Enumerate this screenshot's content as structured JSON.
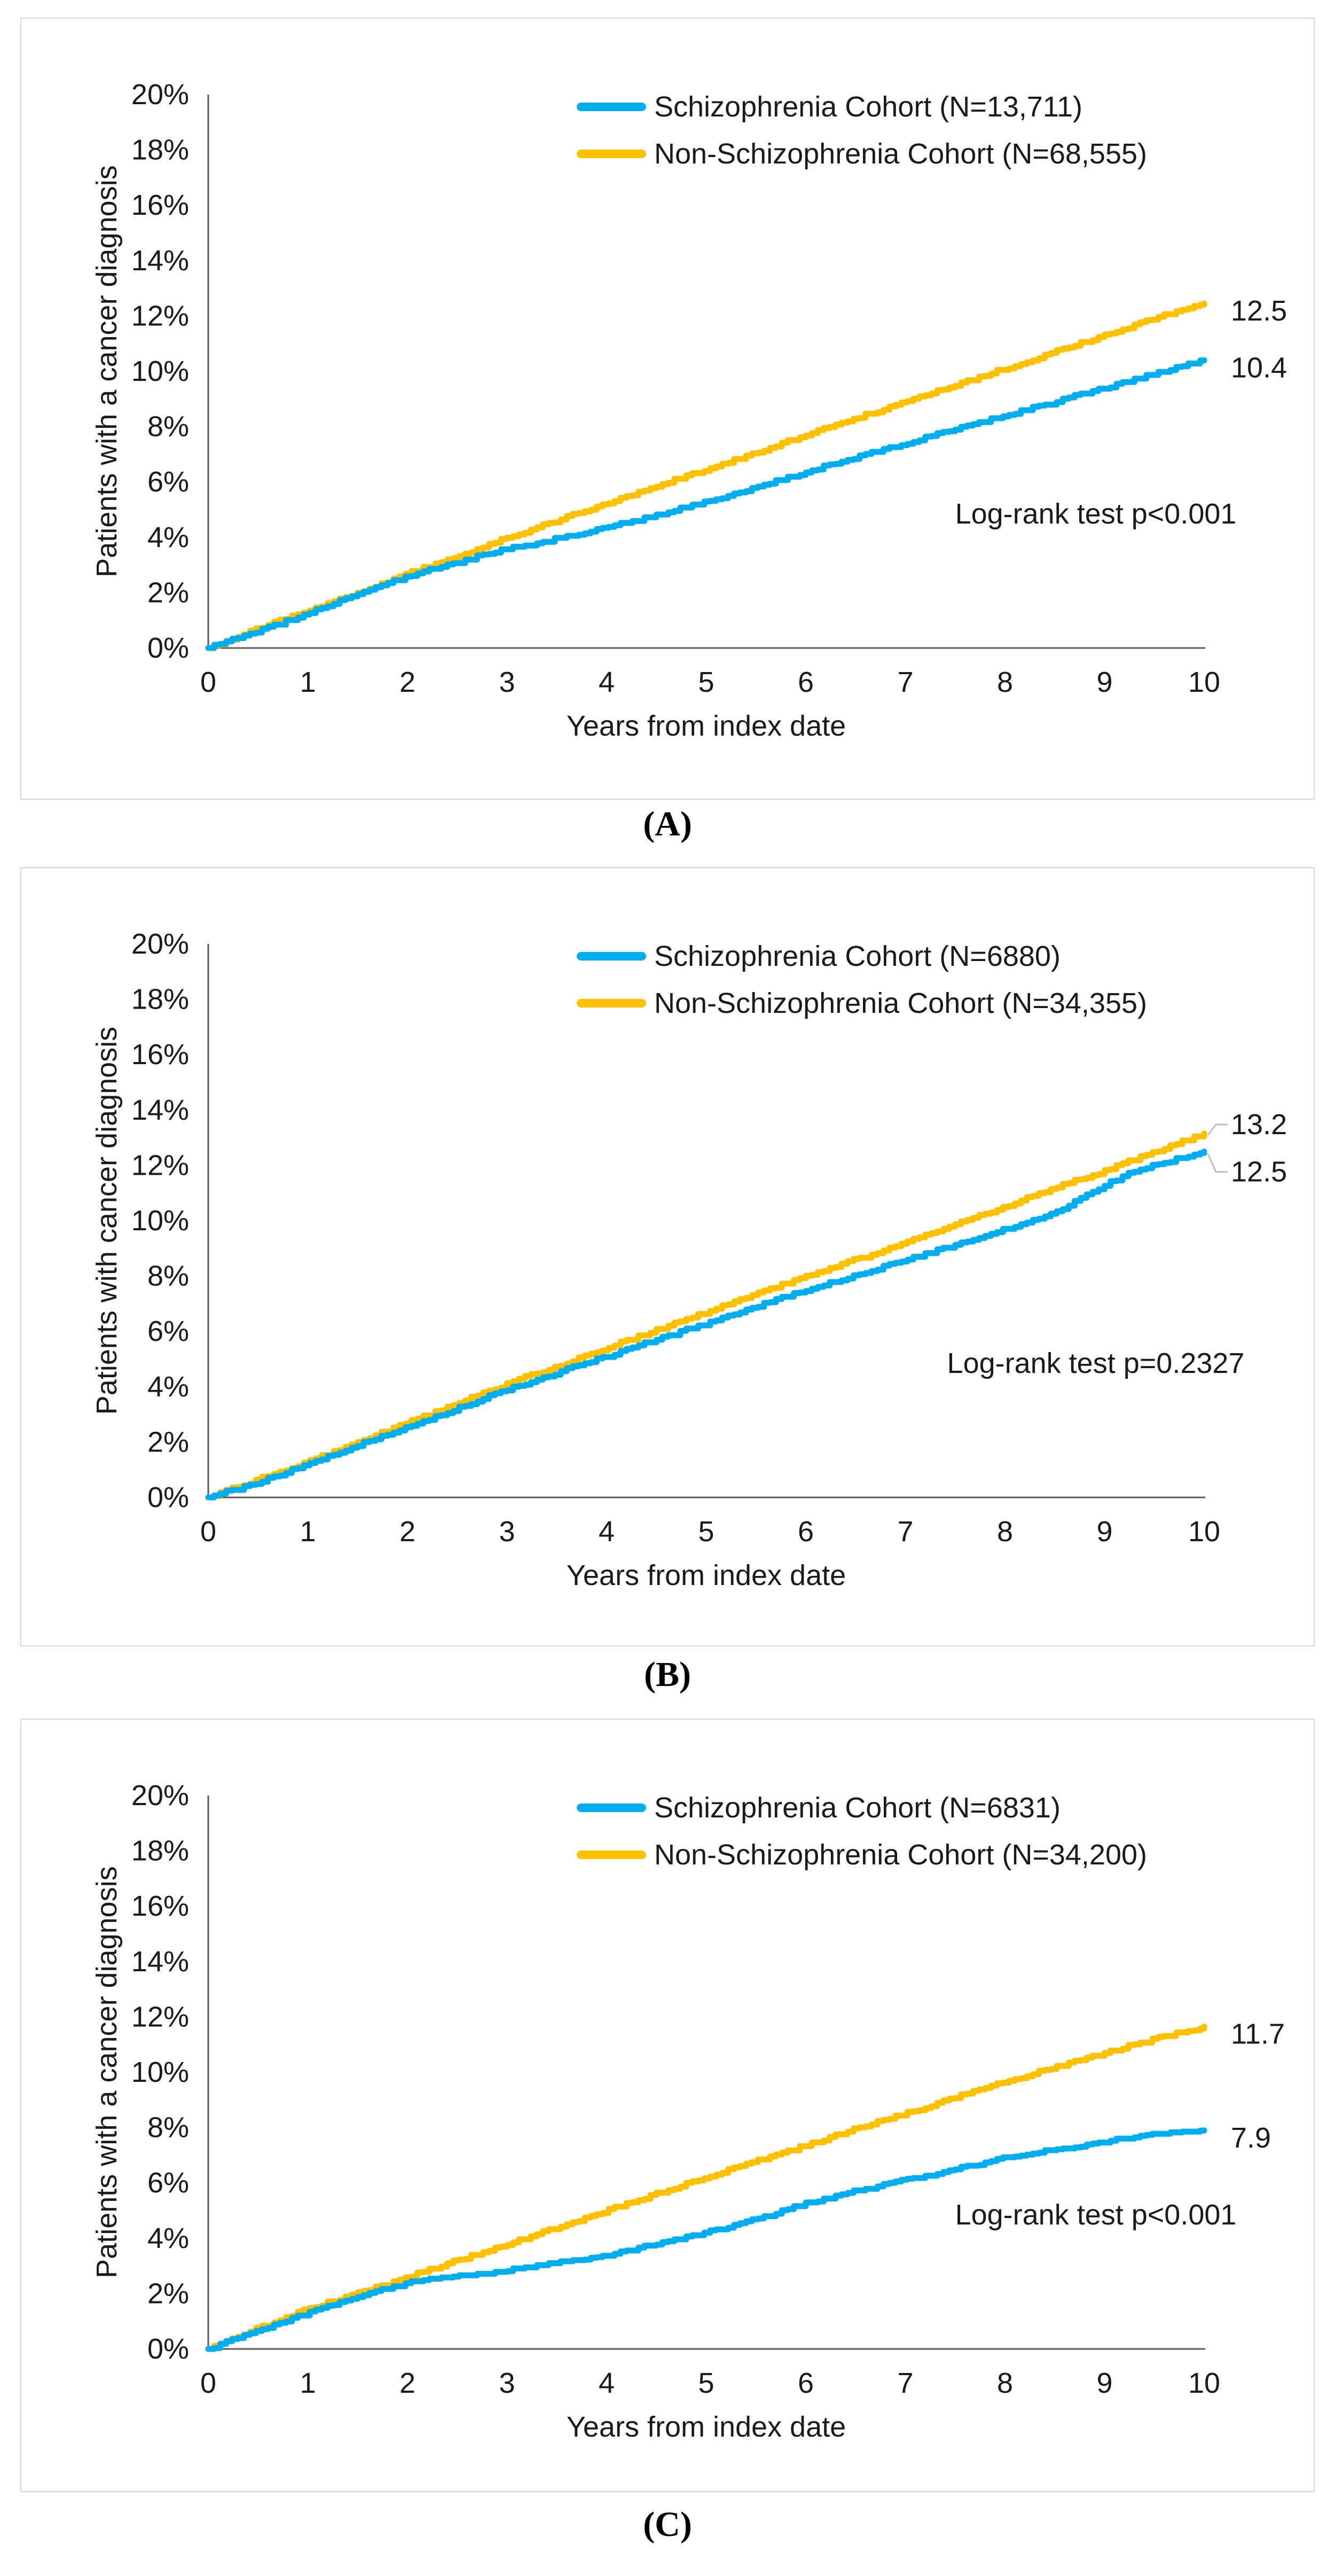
{
  "figure": {
    "caption_a": "(A)",
    "caption_b": "(B)",
    "caption_c": "(C)"
  },
  "colors": {
    "schizophrenia_line": "#00AEEF",
    "non_schizophrenia_line": "#FFC000",
    "axis": "#595959",
    "panel_border": "#D9D9D9",
    "leader_line": "#BFBFBF",
    "text": "#1a1a1a"
  },
  "chart_data": [
    {
      "panel": "A",
      "type": "line",
      "title": "",
      "ylabel": "Patients with a cancer diagnosis",
      "xlabel": "Years from index date",
      "ylim": [
        0,
        20
      ],
      "xlim": [
        0,
        10
      ],
      "ytick_percents": [
        0,
        2,
        4,
        6,
        8,
        10,
        12,
        14,
        16,
        18,
        20
      ],
      "xticks": [
        0,
        1,
        2,
        3,
        4,
        5,
        6,
        7,
        8,
        9,
        10
      ],
      "grid": false,
      "legend_position": "top-center-inside",
      "annotation": "Log-rank test p<0.001",
      "bracket": false,
      "series": [
        {
          "name": "Non-Schizophrenia Cohort  (N=68,555)",
          "color_key": "non_schizophrenia_line",
          "end_label": "12.5",
          "points": [
            [
              0,
              0
            ],
            [
              0.5,
              0.7
            ],
            [
              1,
              1.35
            ],
            [
              1.5,
              2.0
            ],
            [
              2,
              2.7
            ],
            [
              2.5,
              3.3
            ],
            [
              3,
              4.0
            ],
            [
              3.5,
              4.6
            ],
            [
              4,
              5.25
            ],
            [
              4.5,
              5.85
            ],
            [
              5,
              6.45
            ],
            [
              5.5,
              7.05
            ],
            [
              6,
              7.7
            ],
            [
              6.5,
              8.3
            ],
            [
              7,
              8.9
            ],
            [
              7.5,
              9.5
            ],
            [
              8,
              10.1
            ],
            [
              8.5,
              10.7
            ],
            [
              9,
              11.3
            ],
            [
              9.5,
              11.9
            ],
            [
              10,
              12.45
            ]
          ]
        },
        {
          "name": "Schizophrenia Cohort (N=13,711)",
          "color_key": "schizophrenia_line",
          "end_label": "10.4",
          "points": [
            [
              0,
              0
            ],
            [
              0.5,
              0.6
            ],
            [
              1,
              1.25
            ],
            [
              1.5,
              1.95
            ],
            [
              2,
              2.6
            ],
            [
              2.5,
              3.1
            ],
            [
              3,
              3.6
            ],
            [
              3.5,
              3.95
            ],
            [
              4,
              4.35
            ],
            [
              4.5,
              4.8
            ],
            [
              5,
              5.3
            ],
            [
              5.5,
              5.8
            ],
            [
              6,
              6.35
            ],
            [
              6.5,
              6.9
            ],
            [
              7,
              7.4
            ],
            [
              7.5,
              7.9
            ],
            [
              8,
              8.4
            ],
            [
              8.5,
              8.9
            ],
            [
              9,
              9.4
            ],
            [
              9.5,
              9.9
            ],
            [
              10,
              10.4
            ]
          ]
        }
      ],
      "legend": [
        {
          "label": "Schizophrenia Cohort (N=13,711)",
          "color_key": "schizophrenia_line"
        },
        {
          "label": "Non-Schizophrenia Cohort  (N=68,555)",
          "color_key": "non_schizophrenia_line"
        }
      ]
    },
    {
      "panel": "B",
      "type": "line",
      "title": "",
      "ylabel": "Patients with cancer diagnosis",
      "xlabel": "Years from index date",
      "ylim": [
        0,
        20
      ],
      "xlim": [
        0,
        10
      ],
      "ytick_percents": [
        0,
        2,
        4,
        6,
        8,
        10,
        12,
        14,
        16,
        18,
        20
      ],
      "xticks": [
        0,
        1,
        2,
        3,
        4,
        5,
        6,
        7,
        8,
        9,
        10
      ],
      "grid": false,
      "legend_position": "top-center-inside",
      "annotation": "Log-rank test p=0.2327",
      "bracket": true,
      "series": [
        {
          "name": "Non-Schizophrenia Cohort (N=34,355)",
          "color_key": "non_schizophrenia_line",
          "end_label": "13.2",
          "points": [
            [
              0,
              0
            ],
            [
              0.5,
              0.65
            ],
            [
              1,
              1.3
            ],
            [
              1.5,
              2.0
            ],
            [
              2,
              2.7
            ],
            [
              2.5,
              3.4
            ],
            [
              3,
              4.1
            ],
            [
              3.5,
              4.75
            ],
            [
              4,
              5.4
            ],
            [
              4.5,
              6.05
            ],
            [
              5,
              6.7
            ],
            [
              5.5,
              7.35
            ],
            [
              6,
              8.0
            ],
            [
              6.5,
              8.6
            ],
            [
              7,
              9.2
            ],
            [
              7.5,
              9.9
            ],
            [
              8,
              10.5
            ],
            [
              8.5,
              11.2
            ],
            [
              9,
              11.8
            ],
            [
              9.5,
              12.5
            ],
            [
              10,
              13.15
            ]
          ]
        },
        {
          "name": "Schizophrenia Cohort (N=6880)",
          "color_key": "schizophrenia_line",
          "end_label": "12.5",
          "points": [
            [
              0,
              0
            ],
            [
              0.5,
              0.55
            ],
            [
              1,
              1.2
            ],
            [
              1.5,
              1.9
            ],
            [
              2,
              2.55
            ],
            [
              2.5,
              3.2
            ],
            [
              3,
              3.9
            ],
            [
              3.5,
              4.5
            ],
            [
              4,
              5.1
            ],
            [
              4.5,
              5.7
            ],
            [
              5,
              6.3
            ],
            [
              5.5,
              6.9
            ],
            [
              6,
              7.5
            ],
            [
              6.5,
              8.0
            ],
            [
              7,
              8.6
            ],
            [
              7.5,
              9.1
            ],
            [
              8,
              9.7
            ],
            [
              8.5,
              10.3
            ],
            [
              9,
              11.3
            ],
            [
              9.3,
              11.8
            ],
            [
              9.5,
              12.0
            ],
            [
              10,
              12.5
            ]
          ]
        }
      ],
      "legend": [
        {
          "label": "Schizophrenia Cohort (N=6880)",
          "color_key": "schizophrenia_line"
        },
        {
          "label": "Non-Schizophrenia Cohort (N=34,355)",
          "color_key": "non_schizophrenia_line"
        }
      ]
    },
    {
      "panel": "C",
      "type": "line",
      "title": "",
      "ylabel": "Patients with a cancer diagnosis",
      "xlabel": "Years from index date",
      "ylim": [
        0,
        20
      ],
      "xlim": [
        0,
        10
      ],
      "ytick_percents": [
        0,
        2,
        4,
        6,
        8,
        10,
        12,
        14,
        16,
        18,
        20
      ],
      "xticks": [
        0,
        1,
        2,
        3,
        4,
        5,
        6,
        7,
        8,
        9,
        10
      ],
      "grid": false,
      "legend_position": "top-center-inside",
      "annotation": "Log-rank test p<0.001",
      "bracket": false,
      "series": [
        {
          "name": "Non-Schizophrenia Cohort  (N=34,200)",
          "color_key": "non_schizophrenia_line",
          "end_label": "11.7",
          "points": [
            [
              0,
              0
            ],
            [
              0.5,
              0.75
            ],
            [
              1,
              1.45
            ],
            [
              1.5,
              2.0
            ],
            [
              2,
              2.6
            ],
            [
              2.5,
              3.2
            ],
            [
              3,
              3.8
            ],
            [
              3.5,
              4.4
            ],
            [
              4,
              5.0
            ],
            [
              4.5,
              5.6
            ],
            [
              5,
              6.2
            ],
            [
              5.5,
              6.8
            ],
            [
              6,
              7.35
            ],
            [
              6.5,
              7.95
            ],
            [
              7,
              8.5
            ],
            [
              7.5,
              9.1
            ],
            [
              8,
              9.65
            ],
            [
              8.5,
              10.2
            ],
            [
              9,
              10.7
            ],
            [
              9.5,
              11.2
            ],
            [
              10,
              11.65
            ]
          ]
        },
        {
          "name": "Schizophrenia Cohort  (N=6831)",
          "color_key": "schizophrenia_line",
          "end_label": "7.9",
          "points": [
            [
              0,
              0
            ],
            [
              0.5,
              0.65
            ],
            [
              1,
              1.3
            ],
            [
              1.5,
              1.9
            ],
            [
              2,
              2.4
            ],
            [
              2.4,
              2.6
            ],
            [
              2.8,
              2.7
            ],
            [
              3,
              2.85
            ],
            [
              3.5,
              3.1
            ],
            [
              4,
              3.35
            ],
            [
              4.5,
              3.8
            ],
            [
              5,
              4.2
            ],
            [
              5.5,
              4.7
            ],
            [
              6,
              5.25
            ],
            [
              6.5,
              5.7
            ],
            [
              7,
              6.1
            ],
            [
              7.5,
              6.5
            ],
            [
              8,
              6.9
            ],
            [
              8.5,
              7.2
            ],
            [
              9,
              7.5
            ],
            [
              9.5,
              7.75
            ],
            [
              10,
              7.9
            ]
          ]
        }
      ],
      "legend": [
        {
          "label": "Schizophrenia Cohort  (N=6831)",
          "color_key": "schizophrenia_line"
        },
        {
          "label": "Non-Schizophrenia Cohort  (N=34,200)",
          "color_key": "non_schizophrenia_line"
        }
      ]
    }
  ]
}
